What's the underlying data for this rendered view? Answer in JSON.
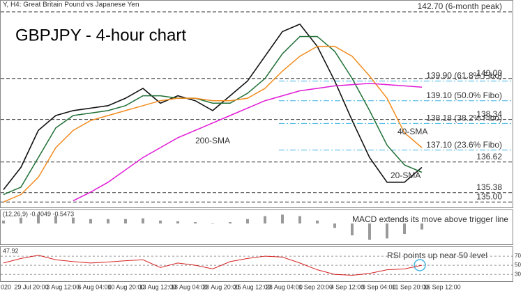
{
  "chart_data": {
    "type": "line",
    "header": "Y, H4:  Great Britain Pound vs Japanese Yen",
    "title": "GBPJPY - 4-hour chart",
    "ylim": [
      134.78,
      143.15
    ],
    "price": [
      135.5,
      136.4,
      137.9,
      138.5,
      138.7,
      138.8,
      138.9,
      139.2,
      139.6,
      139.0,
      139.3,
      139.1,
      138.7,
      139.3,
      139.9,
      140.9,
      141.9,
      142.2,
      141.3,
      139.9,
      138.3,
      136.8,
      135.8,
      135.8,
      136.4
    ],
    "price_color": "#111111",
    "series": [
      {
        "name": "20-SMA",
        "color": "#1f6f35",
        "values": [
          135.3,
          135.6,
          136.8,
          138.0,
          138.5,
          138.6,
          138.7,
          138.9,
          139.3,
          139.3,
          139.2,
          139.2,
          139.0,
          139.0,
          139.4,
          140.0,
          141.0,
          141.7,
          141.7,
          141.1,
          140.0,
          138.7,
          137.3,
          136.5,
          136.2
        ]
      },
      {
        "name": "40-SMA",
        "color": "#f28c1e",
        "values": [
          135.0,
          135.3,
          136.0,
          137.2,
          137.9,
          138.3,
          138.5,
          138.7,
          138.9,
          139.1,
          139.2,
          139.2,
          139.1,
          139.1,
          139.2,
          139.6,
          140.3,
          140.9,
          141.3,
          141.3,
          140.9,
          140.1,
          139.2,
          137.8,
          137.2
        ]
      },
      {
        "name": "200-SMA",
        "color": "#e01ad6",
        "values": [
          null,
          null,
          null,
          null,
          135.05,
          135.4,
          135.8,
          136.3,
          136.8,
          137.2,
          137.6,
          137.9,
          138.2,
          138.5,
          138.8,
          139.1,
          139.3,
          139.5,
          139.6,
          139.7,
          139.75,
          139.8,
          139.75,
          139.7,
          139.65
        ]
      }
    ],
    "levels": [
      {
        "value": 142.7,
        "label": "142.70 (6-month peak)",
        "color": "#e8262b"
      },
      {
        "value": 140.0,
        "label": "140.00",
        "color": "#e8262b"
      },
      {
        "value": 139.9,
        "label": "139.90 (61.8% Fibo)",
        "color": "#3fb4e6"
      },
      {
        "value": 139.1,
        "label": "139.10 (50.0% Fibo)",
        "color": "#3fb4e6"
      },
      {
        "value": 138.34,
        "label": "138.34",
        "color": "#e8262b"
      },
      {
        "value": 138.18,
        "label": "138.18 (38.2% Fibo)",
        "color": "#3fb4e6"
      },
      {
        "value": 137.1,
        "label": "137.10 (23.6% Fibo)",
        "color": "#3fb4e6"
      },
      {
        "value": 136.62,
        "label": "136.62",
        "color": "#e8262b"
      },
      {
        "value": 135.38,
        "label": "135.38",
        "color": "#2f9e2f"
      },
      {
        "value": 135.0,
        "label": "135.00",
        "color": "#2f9e2f"
      }
    ],
    "macd": {
      "header": "(12,26,9) -0.4049 -0.5473",
      "annotation": "MACD extends its move above trigger line",
      "color": "#9a9a9a",
      "ylim": [
        -1.4,
        0.9
      ],
      "values": [
        0.2,
        0.4,
        0.6,
        0.5,
        0.4,
        0.3,
        0.3,
        0.3,
        0.35,
        0.2,
        0.15,
        0.1,
        0.0,
        0.1,
        0.3,
        0.5,
        0.6,
        0.5,
        0.2,
        -0.3,
        -0.8,
        -1.1,
        -1.0,
        -0.7,
        -0.4
      ]
    },
    "rsi": {
      "header": "47.92",
      "annotation": "RSI points up near 50 level",
      "color": "#d62020",
      "ylim": [
        15,
        90
      ],
      "yticks": [
        70,
        50,
        30
      ],
      "values": [
        55,
        65,
        72,
        62,
        58,
        55,
        57,
        60,
        62,
        45,
        55,
        50,
        42,
        58,
        65,
        70,
        68,
        55,
        40,
        30,
        28,
        32,
        40,
        42,
        50
      ]
    },
    "x_labels": [
      "020",
      "29 Jul 20:00",
      "3 Aug 12:00",
      "6 Aug 04:00",
      "10 Aug 20:00",
      "13 Aug 12:00",
      "18 Aug 04:00",
      "20 Aug 20:00",
      "25 Aug 12:00",
      "28 Aug 04:00",
      "1 Sep 20:00",
      "4 Sep 12:00",
      "9 Sep 04:00",
      "11 Sep 20:00",
      "16 Sep 12:00"
    ]
  }
}
